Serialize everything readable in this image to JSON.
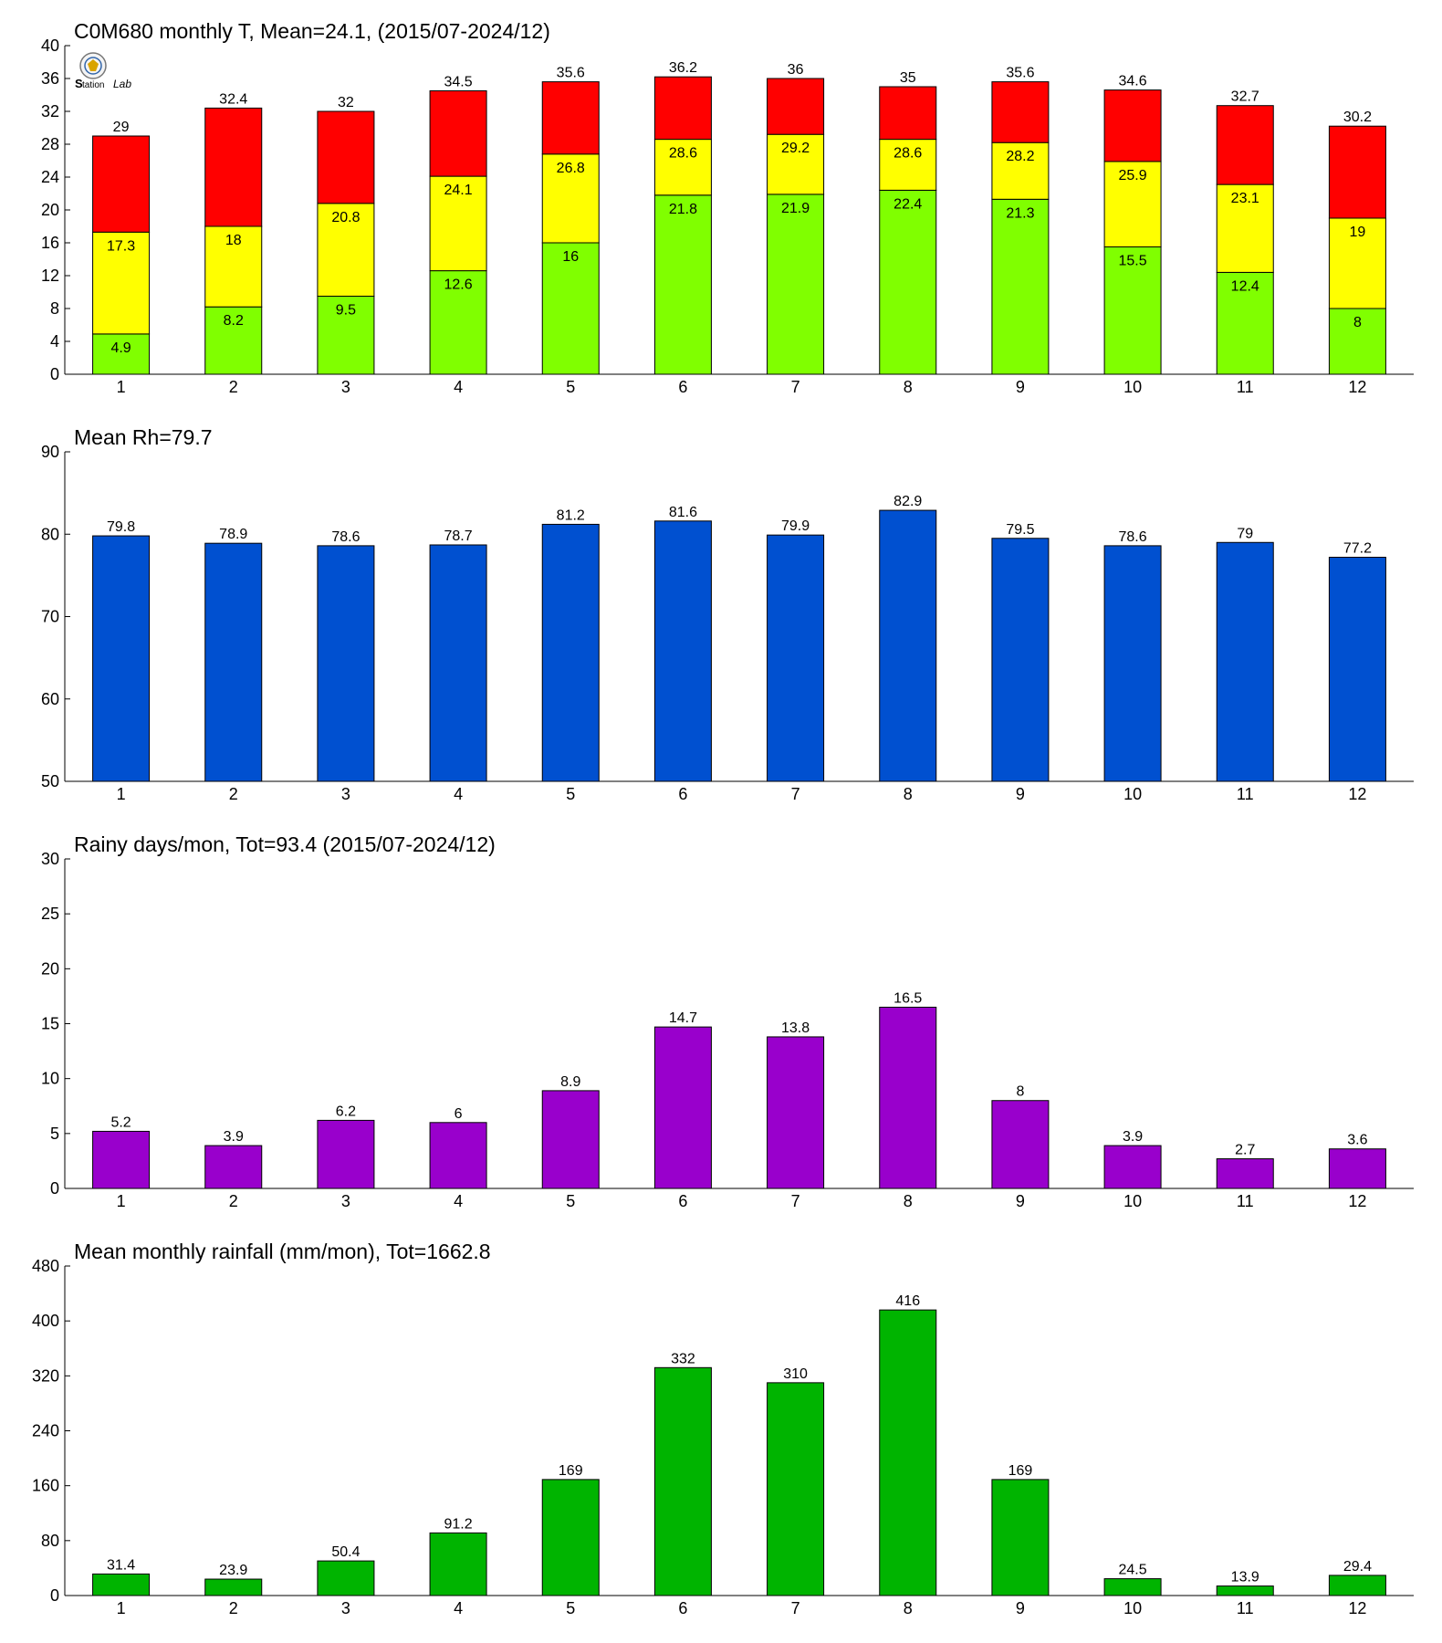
{
  "logo": {
    "name": "station-logo-icon",
    "text": "Lab"
  },
  "chart_data": [
    {
      "type": "bar",
      "subtype": "stacked",
      "title": "C0M680 monthly T, Mean=24.1, (2015/07-2024/12)",
      "xlabel": "",
      "ylabel": "",
      "categories": [
        "1",
        "2",
        "3",
        "4",
        "5",
        "6",
        "7",
        "8",
        "9",
        "10",
        "11",
        "12"
      ],
      "ylim": [
        0,
        40
      ],
      "yticks": [
        0,
        4,
        8,
        12,
        16,
        20,
        24,
        28,
        32,
        36,
        40
      ],
      "series": [
        {
          "values": [
            4.9,
            8.2,
            9.5,
            12.6,
            16,
            21.8,
            21.9,
            22.4,
            21.3,
            15.5,
            12.4,
            8
          ],
          "color": "#80ff00"
        },
        {
          "values": [
            17.3,
            18,
            20.8,
            24.1,
            26.8,
            28.6,
            29.2,
            28.6,
            28.2,
            25.9,
            23.1,
            19
          ],
          "color": "#ffff00"
        },
        {
          "values": [
            29,
            32.4,
            32,
            34.5,
            35.6,
            36.2,
            36,
            35,
            35.6,
            34.6,
            32.7,
            30.2
          ],
          "color": "#ff0000"
        }
      ],
      "grid": false,
      "legend": "none"
    },
    {
      "type": "bar",
      "title": "Mean Rh=79.7",
      "xlabel": "",
      "ylabel": "",
      "categories": [
        "1",
        "2",
        "3",
        "4",
        "5",
        "6",
        "7",
        "8",
        "9",
        "10",
        "11",
        "12"
      ],
      "ylim": [
        50,
        90
      ],
      "yticks": [
        50,
        60,
        70,
        80,
        90
      ],
      "values": [
        79.8,
        78.9,
        78.6,
        78.7,
        81.2,
        81.6,
        79.9,
        82.9,
        79.5,
        78.6,
        79,
        77.2
      ],
      "color": "#0050d0",
      "grid": false,
      "legend": "none"
    },
    {
      "type": "bar",
      "title": "Rainy days/mon, Tot=93.4 (2015/07-2024/12)",
      "xlabel": "",
      "ylabel": "",
      "categories": [
        "1",
        "2",
        "3",
        "4",
        "5",
        "6",
        "7",
        "8",
        "9",
        "10",
        "11",
        "12"
      ],
      "ylim": [
        0,
        30
      ],
      "yticks": [
        0,
        5,
        10,
        15,
        20,
        25,
        30
      ],
      "values": [
        5.2,
        3.9,
        6.2,
        6,
        8.9,
        14.7,
        13.8,
        16.5,
        8,
        3.9,
        2.7,
        3.6
      ],
      "color": "#9900cc",
      "grid": false,
      "legend": "none"
    },
    {
      "type": "bar",
      "title": "Mean monthly rainfall (mm/mon), Tot=1662.8",
      "xlabel": "",
      "ylabel": "",
      "categories": [
        "1",
        "2",
        "3",
        "4",
        "5",
        "6",
        "7",
        "8",
        "9",
        "10",
        "11",
        "12"
      ],
      "ylim": [
        0,
        480
      ],
      "yticks": [
        0,
        80,
        160,
        240,
        320,
        400,
        480
      ],
      "values": [
        31.4,
        23.9,
        50.4,
        91.2,
        169,
        332,
        310,
        416,
        169,
        24.5,
        13.9,
        29.4
      ],
      "color": "#00b400",
      "grid": false,
      "legend": "none"
    }
  ]
}
